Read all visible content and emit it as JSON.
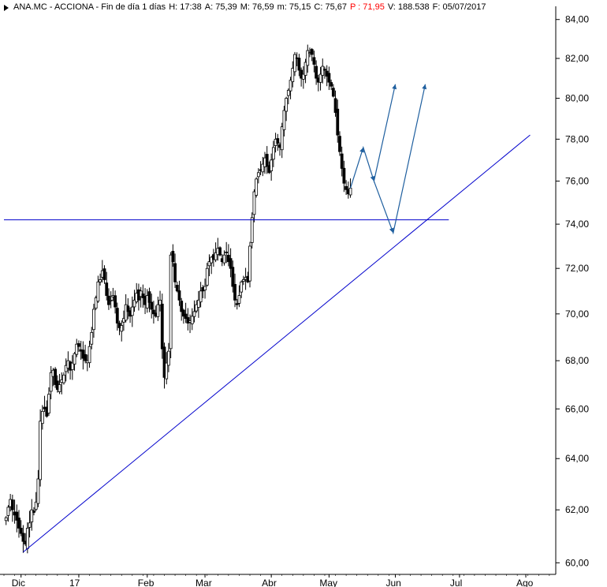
{
  "header": {
    "symbol": "ANA.MC - ACCIONA - Fin de día 1 días",
    "h": "H: 17:38",
    "a": "A: 75,39",
    "m": "M: 76,59",
    "mn": "m: 75,15",
    "c": "C: 75,67",
    "p": "P : 71,95",
    "v": "V: 188.538",
    "f": "F: 05/07/2017"
  },
  "colors": {
    "candle": "#000000",
    "trendline": "#0000cc",
    "support": "#0000cc",
    "projection": "#1f5f9f",
    "p_value": "#ff0000"
  },
  "chart_data": {
    "type": "candlestick",
    "title": "ANA.MC - ACCIONA",
    "scale": "log",
    "ylim": [
      59.6,
      84.4
    ],
    "y_ticks": [
      60,
      62,
      64,
      66,
      68,
      70,
      72,
      74,
      76,
      78,
      80,
      82,
      84
    ],
    "y_tick_labels": [
      "60,00",
      "62,00",
      "64,00",
      "66,00",
      "68,00",
      "70,00",
      "72,00",
      "74,00",
      "76,00",
      "78,00",
      "80,00",
      "82,00",
      "84,00"
    ],
    "x_labels": [
      "Dic",
      "17",
      "Feb",
      "Mar",
      "Abr",
      "May",
      "Jun",
      "Jul",
      "Ago"
    ],
    "x_label_days": [
      0,
      27,
      59,
      86,
      117,
      144,
      175,
      205,
      236
    ],
    "x_range_days": [
      -8,
      250
    ],
    "close_series": [
      [
        -7,
        61.7
      ],
      [
        -6,
        62.1
      ],
      [
        -5,
        62.4
      ],
      [
        -4,
        62.0
      ],
      [
        -3,
        61.8
      ],
      [
        -2,
        61.6
      ],
      [
        -1,
        61.3
      ],
      [
        0,
        61.1
      ],
      [
        1,
        60.8
      ],
      [
        2,
        60.7
      ],
      [
        3,
        61.3
      ],
      [
        4,
        61.5
      ],
      [
        5,
        62.0
      ],
      [
        6,
        61.9
      ],
      [
        7,
        62.3
      ],
      [
        8,
        63.2
      ],
      [
        9,
        65.5
      ],
      [
        10,
        65.9
      ],
      [
        11,
        66.0
      ],
      [
        12,
        65.7
      ],
      [
        13,
        66.6
      ],
      [
        14,
        67.5
      ],
      [
        15,
        67.6
      ],
      [
        16,
        67.0
      ],
      [
        17,
        66.8
      ],
      [
        18,
        67.0
      ],
      [
        19,
        67.2
      ],
      [
        20,
        67.4
      ],
      [
        21,
        67.8
      ],
      [
        22,
        68.0
      ],
      [
        23,
        67.6
      ],
      [
        24,
        67.9
      ],
      [
        25,
        68.3
      ],
      [
        26,
        68.7
      ],
      [
        27,
        68.6
      ],
      [
        28,
        68.4
      ],
      [
        29,
        68.1
      ],
      [
        30,
        68.0
      ],
      [
        31,
        68.0
      ],
      [
        32,
        68.6
      ],
      [
        33,
        69.2
      ],
      [
        34,
        70.2
      ],
      [
        35,
        70.7
      ],
      [
        36,
        71.4
      ],
      [
        37,
        71.5
      ],
      [
        38,
        71.9
      ],
      [
        39,
        71.5
      ],
      [
        40,
        70.8
      ],
      [
        41,
        70.4
      ],
      [
        42,
        70.6
      ],
      [
        43,
        70.8
      ],
      [
        44,
        70.3
      ],
      [
        45,
        69.6
      ],
      [
        46,
        69.4
      ],
      [
        47,
        69.5
      ],
      [
        48,
        69.8
      ],
      [
        49,
        70.4
      ],
      [
        50,
        70.1
      ],
      [
        51,
        69.9
      ],
      [
        52,
        70.3
      ],
      [
        53,
        70.6
      ],
      [
        54,
        70.9
      ],
      [
        55,
        70.6
      ],
      [
        56,
        71.0
      ],
      [
        57,
        70.7
      ],
      [
        58,
        70.4
      ],
      [
        59,
        70.8
      ],
      [
        60,
        70.5
      ],
      [
        61,
        70.2
      ],
      [
        62,
        70.0
      ],
      [
        63,
        69.9
      ],
      [
        64,
        70.4
      ],
      [
        65,
        70.6
      ],
      [
        66,
        68.5
      ],
      [
        67,
        67.3
      ],
      [
        68,
        67.9
      ],
      [
        69,
        68.4
      ],
      [
        70,
        72.6
      ],
      [
        71,
        72.3
      ],
      [
        72,
        71.4
      ],
      [
        73,
        71.0
      ],
      [
        74,
        70.6
      ],
      [
        75,
        70.1
      ],
      [
        76,
        69.9
      ],
      [
        77,
        69.8
      ],
      [
        78,
        69.6
      ],
      [
        79,
        69.7
      ],
      [
        80,
        69.9
      ],
      [
        81,
        70.1
      ],
      [
        82,
        70.4
      ],
      [
        83,
        70.6
      ],
      [
        84,
        71.0
      ],
      [
        85,
        71.0
      ],
      [
        86,
        71.2
      ],
      [
        87,
        72.0
      ],
      [
        88,
        72.3
      ],
      [
        89,
        72.5
      ],
      [
        90,
        72.4
      ],
      [
        91,
        72.7
      ],
      [
        92,
        72.9
      ],
      [
        93,
        72.6
      ],
      [
        94,
        72.3
      ],
      [
        95,
        72.6
      ],
      [
        96,
        72.7
      ],
      [
        97,
        72.3
      ],
      [
        98,
        72.0
      ],
      [
        99,
        71.2
      ],
      [
        100,
        70.6
      ],
      [
        101,
        70.4
      ],
      [
        102,
        70.8
      ],
      [
        103,
        71.4
      ],
      [
        104,
        71.5
      ],
      [
        105,
        71.6
      ],
      [
        106,
        71.4
      ],
      [
        107,
        73.0
      ],
      [
        108,
        74.3
      ],
      [
        109,
        75.5
      ],
      [
        110,
        76.1
      ],
      [
        111,
        76.4
      ],
      [
        112,
        76.5
      ],
      [
        113,
        76.8
      ],
      [
        114,
        77.1
      ],
      [
        115,
        76.7
      ],
      [
        116,
        76.4
      ],
      [
        117,
        77.0
      ],
      [
        118,
        77.6
      ],
      [
        119,
        78.0
      ],
      [
        120,
        77.8
      ],
      [
        121,
        77.6
      ],
      [
        122,
        78.6
      ],
      [
        123,
        79.4
      ],
      [
        124,
        80.0
      ],
      [
        125,
        80.4
      ],
      [
        126,
        80.9
      ],
      [
        127,
        81.5
      ],
      [
        128,
        82.2
      ],
      [
        129,
        82.0
      ],
      [
        130,
        81.4
      ],
      [
        131,
        81.0
      ],
      [
        132,
        81.2
      ],
      [
        133,
        81.8
      ],
      [
        134,
        82.4
      ],
      [
        135,
        82.3
      ],
      [
        136,
        82.2
      ],
      [
        137,
        81.7
      ],
      [
        138,
        81.0
      ],
      [
        139,
        80.8
      ],
      [
        140,
        81.2
      ],
      [
        141,
        81.6
      ],
      [
        142,
        81.4
      ],
      [
        143,
        81.1
      ],
      [
        144,
        80.8
      ],
      [
        145,
        80.6
      ],
      [
        146,
        80.1
      ],
      [
        147,
        79.3
      ],
      [
        148,
        78.2
      ],
      [
        149,
        77.4
      ],
      [
        150,
        76.6
      ],
      [
        151,
        75.9
      ],
      [
        152,
        75.6
      ],
      [
        153,
        75.4
      ],
      [
        154,
        75.67
      ]
    ],
    "trendline": {
      "x1_day": 1,
      "y1": 60.4,
      "x2_day": 238,
      "y2": 78.2
    },
    "support_line": {
      "x1_day": -8,
      "x2_day": 200,
      "y": 74.2
    },
    "projection_paths": [
      [
        [
          154,
          75.67
        ],
        [
          160,
          77.6
        ],
        [
          165,
          76.0
        ],
        [
          175,
          80.7
        ]
      ],
      [
        [
          165,
          76.0
        ],
        [
          174,
          73.6
        ],
        [
          189,
          80.7
        ]
      ]
    ]
  }
}
